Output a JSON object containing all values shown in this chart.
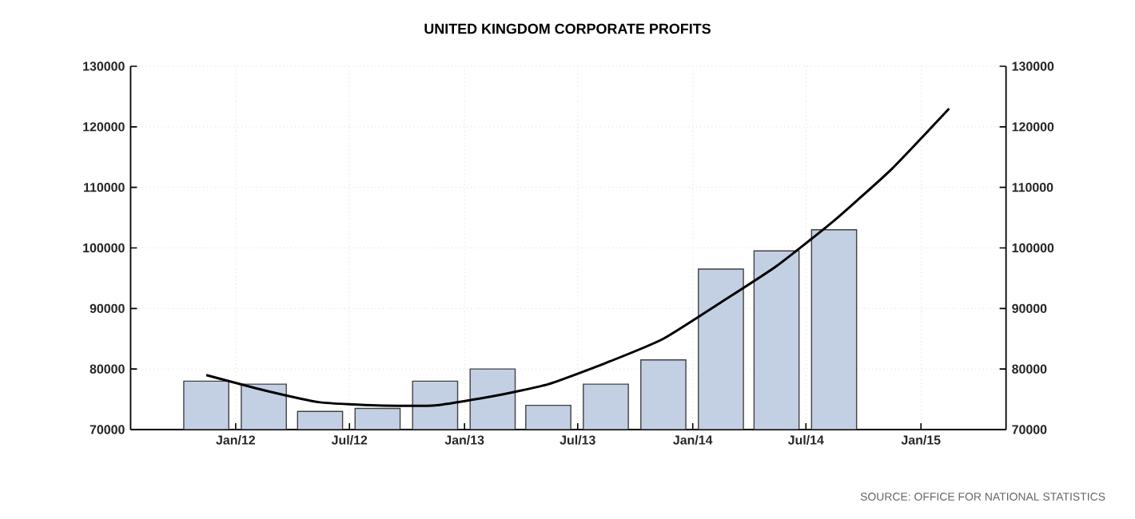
{
  "chart_data": {
    "type": "bar",
    "title": "UNITED KINGDOM CORPORATE PROFITS",
    "x": [
      "2011-11-15",
      "2012-02-15",
      "2012-05-15",
      "2012-08-15",
      "2012-11-15",
      "2013-02-15",
      "2013-05-15",
      "2013-08-15",
      "2013-11-15",
      "2014-02-15",
      "2014-05-15",
      "2014-08-15"
    ],
    "series": [
      {
        "color": "#c3d0e4",
        "values": [
          78000,
          77500,
          73000,
          73500,
          78000,
          80000,
          74000,
          77500,
          81500,
          96500,
          99500,
          103000
        ]
      },
      {
        "type": "line",
        "color": "#000000",
        "x": [
          "2011-11-15",
          "2012-02-15",
          "2012-05-15",
          "2012-08-15",
          "2012-11-15",
          "2013-02-15",
          "2013-05-15",
          "2013-08-15",
          "2013-11-15",
          "2014-02-15",
          "2014-05-15",
          "2014-08-15",
          "2014-11-15",
          "2015-02-15"
        ],
        "values": [
          79000,
          76500,
          74500,
          74000,
          74000,
          75500,
          77500,
          81000,
          85000,
          91000,
          97000,
          104500,
          113000,
          123000
        ]
      }
    ],
    "xlim": [
      "2011-07-17",
      "2015-05-17"
    ],
    "xticks": [
      {
        "value": "2012-01-01",
        "label": "Jan/12"
      },
      {
        "value": "2012-07-01",
        "label": "Jul/12"
      },
      {
        "value": "2013-01-01",
        "label": "Jan/13"
      },
      {
        "value": "2013-07-01",
        "label": "Jul/13"
      },
      {
        "value": "2014-01-01",
        "label": "Jan/14"
      },
      {
        "value": "2014-07-01",
        "label": "Jul/14"
      },
      {
        "value": "2015-01-01",
        "label": "Jan/15"
      }
    ],
    "ylim": [
      70000,
      130000
    ],
    "yticks": [
      70000,
      80000,
      90000,
      100000,
      110000,
      120000,
      130000
    ],
    "y2lim": [
      70000,
      130000
    ],
    "y2ticks": [
      70000,
      80000,
      90000,
      100000,
      110000,
      120000,
      130000
    ],
    "grid": true,
    "annotations": [
      "SOURCE: OFFICE FOR NATIONAL STATISTICS"
    ]
  }
}
